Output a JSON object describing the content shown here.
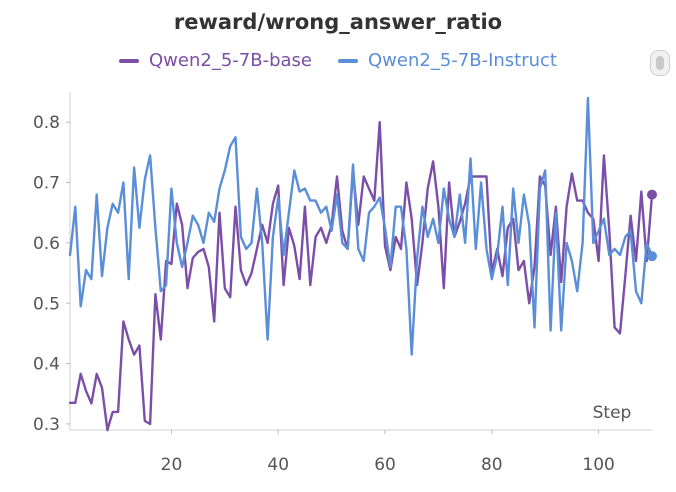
{
  "chart_data": {
    "type": "line",
    "title": "reward/wrong_answer_ratio",
    "xlabel": "Step",
    "ylabel": "",
    "xlim": [
      1,
      110
    ],
    "ylim": [
      0.29,
      0.85
    ],
    "xticks": [
      20,
      40,
      60,
      80,
      100
    ],
    "yticks": [
      0.3,
      0.4,
      0.5,
      0.6,
      0.7,
      0.8
    ],
    "grid": false,
    "legend": "top-center",
    "series": [
      {
        "name": "Qwen2_5-7B-base",
        "color": "#7b4fa8",
        "y": [
          0.335,
          0.335,
          0.383,
          0.355,
          0.334,
          0.383,
          0.36,
          0.29,
          0.32,
          0.32,
          0.47,
          0.44,
          0.415,
          0.43,
          0.305,
          0.3,
          0.515,
          0.44,
          0.57,
          0.565,
          0.665,
          0.63,
          0.525,
          0.575,
          0.585,
          0.59,
          0.56,
          0.47,
          0.65,
          0.525,
          0.51,
          0.66,
          0.555,
          0.53,
          0.55,
          0.59,
          0.63,
          0.6,
          0.665,
          0.695,
          0.53,
          0.625,
          0.595,
          0.54,
          0.66,
          0.53,
          0.61,
          0.625,
          0.6,
          0.63,
          0.71,
          0.62,
          0.59,
          0.72,
          0.63,
          0.71,
          0.69,
          0.67,
          0.8,
          0.595,
          0.555,
          0.61,
          0.59,
          0.7,
          0.64,
          0.53,
          0.6,
          0.69,
          0.735,
          0.66,
          0.525,
          0.7,
          0.61,
          0.635,
          0.665,
          0.71,
          0.71,
          0.71,
          0.71,
          0.55,
          0.59,
          0.545,
          0.625,
          0.64,
          0.555,
          0.57,
          0.5,
          0.56,
          0.71,
          0.695,
          0.58,
          0.66,
          0.535,
          0.66,
          0.715,
          0.67,
          0.67,
          0.65,
          0.64,
          0.57,
          0.745,
          0.62,
          0.46,
          0.45,
          0.545,
          0.645,
          0.57,
          0.685,
          0.57,
          0.68
        ]
      },
      {
        "name": "Qwen2_5-7B-Instruct",
        "color": "#5a8ed8",
        "y": [
          0.58,
          0.66,
          0.495,
          0.555,
          0.54,
          0.68,
          0.545,
          0.625,
          0.665,
          0.65,
          0.7,
          0.54,
          0.725,
          0.625,
          0.705,
          0.745,
          0.625,
          0.52,
          0.53,
          0.69,
          0.6,
          0.56,
          0.6,
          0.645,
          0.63,
          0.6,
          0.65,
          0.635,
          0.69,
          0.72,
          0.76,
          0.775,
          0.61,
          0.59,
          0.6,
          0.69,
          0.6,
          0.44,
          0.61,
          0.675,
          0.58,
          0.65,
          0.72,
          0.685,
          0.69,
          0.67,
          0.67,
          0.65,
          0.66,
          0.62,
          0.68,
          0.6,
          0.59,
          0.73,
          0.59,
          0.57,
          0.65,
          0.66,
          0.675,
          0.625,
          0.56,
          0.66,
          0.66,
          0.59,
          0.415,
          0.575,
          0.66,
          0.61,
          0.64,
          0.6,
          0.69,
          0.64,
          0.61,
          0.68,
          0.6,
          0.74,
          0.59,
          0.7,
          0.59,
          0.54,
          0.58,
          0.66,
          0.53,
          0.69,
          0.6,
          0.68,
          0.63,
          0.46,
          0.69,
          0.72,
          0.455,
          0.65,
          0.455,
          0.6,
          0.57,
          0.52,
          0.6,
          0.84,
          0.6,
          0.62,
          0.64,
          0.58,
          0.59,
          0.58,
          0.61,
          0.62,
          0.52,
          0.5,
          0.6,
          0.578
        ]
      }
    ]
  }
}
